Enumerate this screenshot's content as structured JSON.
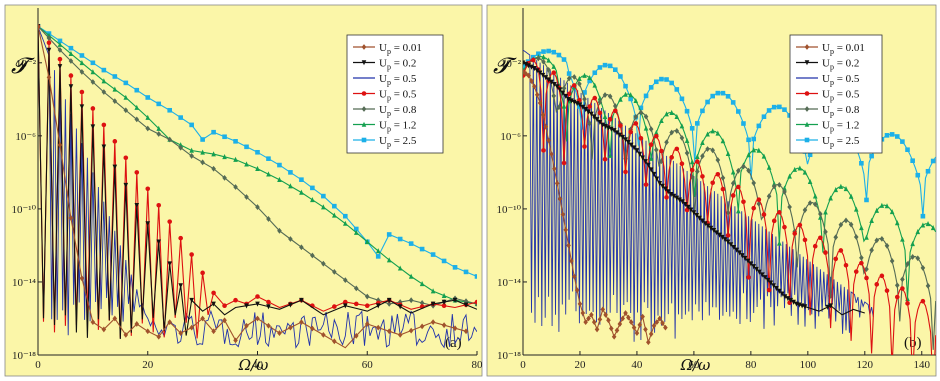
{
  "chart_data": [
    {
      "panel": "a",
      "type": "line",
      "panel_label": "(a)",
      "xlabel": "Ω/ω",
      "ylabel": "𝓣",
      "xlim": [
        0,
        80
      ],
      "ylog": true,
      "ylim_exp": [
        -18,
        1
      ],
      "x_ticks": [
        0,
        20,
        40,
        60,
        80
      ],
      "y_tick_exps": [
        -18,
        -14,
        -10,
        -6,
        -2
      ],
      "y_tick_labels": [
        "10⁻¹⁸",
        "10⁻¹⁴",
        "10⁻¹⁰",
        "10⁻⁶",
        "10⁻²"
      ],
      "x_tick_labels": [
        "0",
        "20",
        "40",
        "60",
        "80"
      ],
      "legend_position": "top-right",
      "background": "#fbf6a8",
      "series": [
        {
          "name": "U_p = 0.01",
          "color": "#a0522d",
          "marker": "diamond",
          "step": 2,
          "x": [
            0,
            2,
            4,
            6,
            8,
            10,
            12,
            14,
            16,
            18,
            20,
            22,
            24,
            26,
            28,
            30,
            32,
            34,
            36,
            38,
            40,
            44,
            48,
            52,
            56,
            60,
            66,
            72,
            78
          ],
          "y": [
            0,
            -2.8,
            -6.5,
            -10.5,
            -13.8,
            -16.2,
            -16.6,
            -16.0,
            -16.9,
            -16.3,
            -16.7,
            -17.0,
            -16.2,
            -16.8,
            -16.5,
            -16.0,
            -16.7,
            -16.1,
            -17.2,
            -16.4,
            -16.0,
            -16.8,
            -16.2,
            -16.9,
            -17.6,
            -16.3,
            -16.9,
            -16.2,
            -16.7
          ]
        },
        {
          "name": "U_p = 0.2",
          "color": "#111111",
          "marker": "triangle-down",
          "step": 2,
          "x": [
            0,
            2,
            4,
            6,
            8,
            10,
            12,
            14,
            16,
            18,
            20,
            22,
            24,
            26,
            28,
            30,
            32,
            34,
            36,
            38,
            40,
            44,
            48,
            52,
            56,
            60,
            64,
            68,
            72,
            76,
            80
          ],
          "y": [
            0,
            -1.3,
            -2.2,
            -3.3,
            -4.4,
            -5.5,
            -6.6,
            -7.7,
            -8.7,
            -9.8,
            -10.8,
            -11.8,
            -13.0,
            -14.2,
            -15.0,
            -15.6,
            -15.2,
            -15.8,
            -15.4,
            -15.3,
            -15.2,
            -15.5,
            -15.0,
            -15.8,
            -15.3,
            -15.6,
            -15.0,
            -15.7,
            -15.2,
            -15.0,
            -15.5
          ]
        },
        {
          "name": "U_p = 0.5",
          "color": "#2233aa",
          "marker": "none",
          "noisy": true
        },
        {
          "name": "U_p = 0.5",
          "color": "#dd1111",
          "marker": "circle",
          "step": 2,
          "x": [
            0,
            2,
            4,
            6,
            8,
            10,
            12,
            14,
            16,
            18,
            20,
            22,
            24,
            26,
            28,
            30,
            32,
            34,
            36,
            38,
            40,
            44,
            48,
            52,
            56,
            60,
            64,
            68,
            72,
            76,
            80
          ],
          "y": [
            0,
            -0.9,
            -1.8,
            -2.7,
            -3.6,
            -4.5,
            -5.4,
            -6.3,
            -7.2,
            -8.0,
            -8.9,
            -9.8,
            -10.7,
            -11.6,
            -12.5,
            -13.5,
            -14.6,
            -15.3,
            -15.0,
            -15.2,
            -14.8,
            -15.4,
            -15.0,
            -15.6,
            -15.1,
            -15.3,
            -15.0,
            -15.5,
            -15.2,
            -15.4,
            -15.1
          ]
        },
        {
          "name": "U_p = 0.8",
          "color": "#556b55",
          "marker": "diamond",
          "step": 2,
          "x": [
            0,
            4,
            8,
            12,
            16,
            20,
            24,
            28,
            32,
            36,
            40,
            44,
            48,
            52,
            56,
            60,
            64,
            68,
            72,
            76,
            80
          ],
          "y": [
            0,
            -1.3,
            -2.5,
            -3.6,
            -4.6,
            -5.6,
            -6.2,
            -7.1,
            -7.8,
            -8.8,
            -9.9,
            -11.2,
            -12.1,
            -13.0,
            -13.9,
            -14.8,
            -15.2,
            -15.0,
            -15.3,
            -14.9,
            -15.2
          ]
        },
        {
          "name": "U_p = 1.2",
          "color": "#14a050",
          "marker": "triangle-up",
          "step": 2,
          "x": [
            0,
            4,
            8,
            12,
            16,
            20,
            24,
            28,
            32,
            36,
            40,
            44,
            48,
            52,
            56,
            60,
            64,
            68,
            72,
            76,
            80
          ],
          "y": [
            0,
            -1.0,
            -2.0,
            -3.0,
            -3.9,
            -5.0,
            -6.2,
            -6.8,
            -7.0,
            -7.3,
            -7.8,
            -8.4,
            -9.1,
            -9.9,
            -10.8,
            -11.8,
            -12.8,
            -13.7,
            -14.5,
            -15.0,
            -15.2
          ]
        },
        {
          "name": "U_p = 2.5",
          "color": "#1cb0e8",
          "marker": "square",
          "step": 2,
          "x": [
            0,
            4,
            8,
            12,
            16,
            20,
            24,
            28,
            30,
            32,
            36,
            40,
            44,
            48,
            52,
            56,
            60,
            62,
            64,
            68,
            72,
            76,
            80
          ],
          "y": [
            0,
            -0.8,
            -1.6,
            -2.4,
            -3.1,
            -3.9,
            -4.6,
            -5.4,
            -6.2,
            -5.8,
            -6.3,
            -6.9,
            -7.6,
            -8.4,
            -9.3,
            -10.4,
            -11.8,
            -12.6,
            -11.4,
            -11.9,
            -12.5,
            -13.2,
            -13.7
          ]
        }
      ]
    },
    {
      "panel": "b",
      "type": "line",
      "panel_label": "(b)",
      "xlabel": "Ω/ω",
      "ylabel": "𝓣",
      "xlim": [
        0,
        145
      ],
      "ylog": true,
      "ylim_exp": [
        -18,
        1
      ],
      "x_ticks": [
        0,
        20,
        40,
        60,
        80,
        100,
        120,
        140
      ],
      "y_tick_exps": [
        -18,
        -14,
        -10,
        -6,
        -2
      ],
      "y_tick_labels": [
        "10⁻¹⁸",
        "10⁻¹⁴",
        "10⁻¹⁰",
        "10⁻⁶",
        "10⁻²"
      ],
      "x_tick_labels": [
        "0",
        "20",
        "40",
        "60",
        "80",
        "100",
        "120",
        "140"
      ],
      "legend_position": "top-right",
      "background": "#fbf6a8",
      "series": [
        {
          "name": "U_p = 0.01",
          "color": "#a0522d",
          "marker": "diamond",
          "step": 1,
          "x": [
            0,
            2,
            4,
            6,
            8,
            10,
            12,
            14,
            16,
            18,
            20,
            22,
            24,
            26,
            28,
            30,
            32,
            34,
            36,
            38,
            40,
            42,
            44,
            46,
            48,
            50
          ],
          "y": [
            -2.5,
            -2.7,
            -3.3,
            -4.2,
            -5.5,
            -7.0,
            -8.6,
            -10.3,
            -12.0,
            -13.7,
            -15.2,
            -16.2,
            -15.8,
            -16.6,
            -15.5,
            -16.1,
            -17.0,
            -16.3,
            -15.7,
            -16.2,
            -16.8,
            -15.9,
            -17.3,
            -16.4,
            -16.0,
            -16.5
          ]
        },
        {
          "name": "U_p = 0.2",
          "color": "#111111",
          "marker": "triangle-down",
          "step": 1,
          "x": [
            0,
            4,
            8,
            12,
            16,
            20,
            24,
            28,
            32,
            36,
            40,
            44,
            48,
            52,
            56,
            60,
            64,
            68,
            72,
            76,
            80,
            84,
            88,
            92,
            96,
            100,
            104,
            108,
            112,
            116,
            120
          ],
          "y": [
            -2.0,
            -2.3,
            -2.8,
            -3.3,
            -4.0,
            -4.3,
            -4.8,
            -5.4,
            -5.7,
            -6.2,
            -6.8,
            -7.6,
            -8.6,
            -9.2,
            -9.6,
            -10.2,
            -10.8,
            -11.3,
            -11.8,
            -12.4,
            -13.0,
            -13.6,
            -14.2,
            -14.8,
            -15.2,
            -15.4,
            -15.6,
            -15.3,
            -15.8,
            -15.5,
            -15.7
          ]
        },
        {
          "name": "U_p = 0.5",
          "color": "#2233aa",
          "marker": "none",
          "noisy": true
        },
        {
          "name": "U_p = 0.5",
          "color": "#dd1111",
          "marker": "circle",
          "step": 1,
          "scallop": true,
          "period": 7.2,
          "x": [
            0,
            145
          ],
          "y": [
            -1.5,
            -15.5
          ]
        },
        {
          "name": "U_p = 0.8",
          "color": "#556b55",
          "marker": "diamond",
          "step": 1,
          "scallop": true,
          "period": 12,
          "x": [
            0,
            145
          ],
          "y": [
            -1.3,
            -13.2
          ]
        },
        {
          "name": "U_p = 1.2",
          "color": "#14a050",
          "marker": "triangle-up",
          "step": 1,
          "scallop": true,
          "period": 15,
          "x": [
            0,
            145
          ],
          "y": [
            -1.2,
            -11.0
          ]
        },
        {
          "name": "U_p = 2.5",
          "color": "#1cb0e8",
          "marker": "square",
          "step": 1,
          "scallop": true,
          "period": 20,
          "x": [
            0,
            145
          ],
          "y": [
            -1.0,
            -6.5
          ]
        }
      ]
    }
  ]
}
